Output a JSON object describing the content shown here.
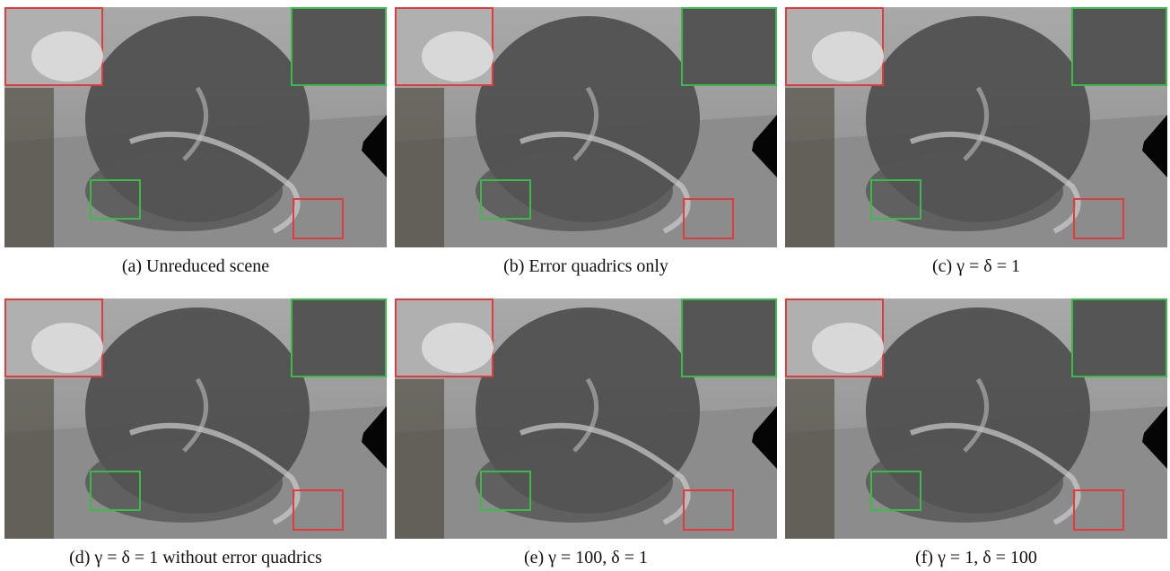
{
  "figure": {
    "panels": [
      {
        "caption": "(a) Unreduced scene"
      },
      {
        "caption": "(b) Error quadrics only"
      },
      {
        "caption": "(c) γ = δ = 1"
      },
      {
        "caption": "(d) γ = δ = 1 without error quadrics"
      },
      {
        "caption": "(e) γ = 100, δ = 1"
      },
      {
        "caption": "(f) γ = 1, δ = 100"
      }
    ]
  }
}
